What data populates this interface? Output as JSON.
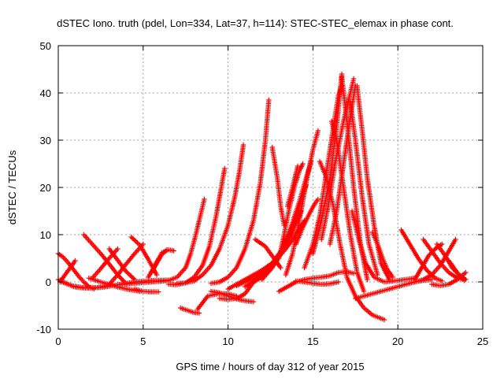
{
  "chart_data": {
    "type": "scatter",
    "title": "dSTEC Iono. truth (pdel, Lon=334, Lat=37, h=114): STEC-STEC_elemax in phase cont.",
    "xlabel": "GPS time / hours of day 312 of year 2015",
    "ylabel": "dSTEC  / TECUs",
    "xlim": [
      0,
      25
    ],
    "ylim": [
      -10,
      50
    ],
    "xticks": [
      0,
      5,
      10,
      15,
      20,
      25
    ],
    "yticks": [
      -10,
      0,
      10,
      20,
      30,
      40,
      50
    ],
    "grid": true,
    "marker": "plus",
    "color": "#ff0000",
    "series": [
      {
        "x": [
          0.0,
          0.3,
          0.6,
          0.9,
          1.2,
          1.6,
          2.0,
          2.4,
          2.8,
          3.2
        ],
        "y": [
          0.5,
          0.0,
          -0.5,
          -1.0,
          -1.2,
          -1.3,
          -1.3,
          -1.1,
          -0.8,
          -0.5
        ]
      },
      {
        "x": [
          0.0,
          0.3,
          0.6,
          0.9,
          1.2,
          1.5,
          1.8,
          2.1
        ],
        "y": [
          6.0,
          5.2,
          4.0,
          2.6,
          1.2,
          0.0,
          -1.0,
          -1.5
        ]
      },
      {
        "x": [
          0.1,
          0.4,
          0.7,
          1.0
        ],
        "y": [
          0.0,
          1.5,
          3.0,
          4.5
        ]
      },
      {
        "x": [
          0.2,
          0.8,
          1.5,
          2.5,
          3.5,
          4.5,
          5.5,
          6.5
        ],
        "y": [
          0.0,
          -0.8,
          -1.2,
          -1.2,
          -0.6,
          0.0,
          0.3,
          0.4
        ]
      },
      {
        "x": [
          1.5,
          2.0,
          2.5,
          3.0,
          3.5,
          3.9
        ],
        "y": [
          10.0,
          8.0,
          6.0,
          3.8,
          1.5,
          0.0
        ]
      },
      {
        "x": [
          2.0,
          2.5,
          3.0,
          3.5
        ],
        "y": [
          0.8,
          2.8,
          5.0,
          7.0
        ]
      },
      {
        "x": [
          1.8,
          2.5,
          3.2,
          4.0,
          4.8
        ],
        "y": [
          0.8,
          0.0,
          -0.8,
          -1.5,
          -2.0
        ]
      },
      {
        "x": [
          3.0,
          3.5,
          4.0,
          4.5
        ],
        "y": [
          7.0,
          4.6,
          2.2,
          0.5
        ]
      },
      {
        "x": [
          3.0,
          3.5,
          4.0,
          4.5,
          5.0
        ],
        "y": [
          -0.5,
          1.5,
          3.8,
          6.0,
          8.0
        ]
      },
      {
        "x": [
          4.3,
          4.8,
          5.3,
          5.8
        ],
        "y": [
          9.5,
          7.8,
          4.8,
          1.5
        ]
      },
      {
        "x": [
          4.5,
          5.0,
          5.5,
          5.9
        ],
        "y": [
          -1.5,
          -2.0,
          -2.1,
          -2.1
        ]
      },
      {
        "x": [
          5.5,
          5.8,
          6.1,
          6.4
        ],
        "y": [
          2.0,
          4.0,
          5.8,
          6.8
        ]
      },
      {
        "x": [
          5.3,
          5.7,
          6.1,
          6.5,
          6.8
        ],
        "y": [
          1.0,
          3.5,
          6.2,
          6.8,
          6.6
        ]
      },
      {
        "x": [
          3.5,
          4.5,
          5.5,
          6.0,
          6.5,
          7.0,
          7.5,
          7.8,
          8.1,
          8.4,
          8.6
        ],
        "y": [
          -0.6,
          -0.3,
          0.0,
          0.1,
          0.3,
          1.0,
          3.0,
          6.0,
          10.0,
          14.5,
          17.5
        ]
      },
      {
        "x": [
          6.5,
          7.0,
          7.5,
          8.0,
          8.5,
          8.9,
          9.3,
          9.6,
          9.8
        ],
        "y": [
          -0.5,
          -0.6,
          -0.2,
          1.0,
          3.5,
          7.5,
          14.0,
          20.0,
          24.0
        ]
      },
      {
        "x": [
          7.0,
          7.5,
          8.0,
          8.5,
          9.0,
          9.5,
          10.0,
          10.4,
          10.7,
          10.9
        ],
        "y": [
          -0.3,
          -0.2,
          0.2,
          1.5,
          3.5,
          7.0,
          12.0,
          18.0,
          24.0,
          29.0
        ]
      },
      {
        "x": [
          7.2,
          7.6,
          8.0,
          8.3
        ],
        "y": [
          -5.5,
          -6.0,
          -6.5,
          -6.6
        ]
      },
      {
        "x": [
          8.2,
          8.8,
          9.4,
          10.0,
          10.5
        ],
        "y": [
          -5.8,
          -3.0,
          -2.5,
          -2.5,
          -3.0
        ]
      },
      {
        "x": [
          9.0,
          9.5,
          10.0,
          10.5,
          11.0,
          11.5
        ],
        "y": [
          -2.0,
          -2.3,
          -3.0,
          -3.6,
          -4.0,
          -4.2
        ]
      },
      {
        "x": [
          9.5,
          10.0,
          10.5,
          11.0,
          11.5,
          12.0,
          12.5
        ],
        "y": [
          -3.5,
          -3.7,
          -3.5,
          -2.5,
          0.0,
          2.0,
          3.5
        ]
      },
      {
        "x": [
          9.0,
          9.5,
          10.0,
          10.5,
          11.0,
          11.5,
          11.9,
          12.2,
          12.4
        ],
        "y": [
          -0.3,
          0.0,
          1.0,
          3.0,
          7.0,
          13.0,
          21.0,
          30.0,
          38.5
        ]
      },
      {
        "x": [
          10.0,
          11.0,
          12.0,
          12.8,
          13.4,
          14.0,
          14.5
        ],
        "y": [
          -1.5,
          0.5,
          2.5,
          4.5,
          7.0,
          10.0,
          13.0
        ]
      },
      {
        "x": [
          10.5,
          11.5,
          12.5,
          13.2,
          13.8,
          14.3
        ],
        "y": [
          -0.8,
          0.8,
          3.5,
          7.0,
          10.5,
          15.0
        ]
      },
      {
        "x": [
          11.0,
          12.0,
          12.8,
          13.5,
          14.1
        ],
        "y": [
          -1.0,
          1.0,
          4.0,
          9.0,
          14.0
        ]
      },
      {
        "x": [
          11.5,
          12.3,
          13.0,
          13.6,
          14.2,
          14.6
        ],
        "y": [
          0.0,
          2.0,
          5.5,
          10.0,
          16.0,
          20.5
        ]
      },
      {
        "x": [
          12.0,
          12.6,
          13.2,
          13.7,
          14.2,
          14.6,
          14.9
        ],
        "y": [
          0.5,
          3.0,
          7.0,
          11.5,
          17.0,
          22.0,
          25.5
        ]
      },
      {
        "x": [
          11.6,
          12.2,
          12.7,
          13.1
        ],
        "y": [
          9.0,
          7.5,
          5.0,
          3.0
        ]
      },
      {
        "x": [
          12.6,
          12.9,
          13.1,
          13.3
        ],
        "y": [
          28.5,
          22.0,
          16.0,
          12.0
        ]
      },
      {
        "x": [
          13.0,
          13.3,
          13.6,
          13.9,
          14.2,
          14.4
        ],
        "y": [
          5.0,
          10.0,
          15.5,
          20.0,
          23.5,
          25.0
        ]
      },
      {
        "x": [
          13.4,
          13.8,
          14.2,
          14.6,
          15.0,
          15.3
        ],
        "y": [
          1.5,
          6.0,
          13.0,
          21.0,
          28.0,
          32.0
        ]
      },
      {
        "x": [
          13.5,
          13.8,
          14.1
        ],
        "y": [
          16.0,
          20.0,
          24.5
        ]
      },
      {
        "x": [
          14.0,
          14.4,
          14.8,
          15.1,
          15.3
        ],
        "y": [
          8.0,
          11.5,
          14.5,
          16.5,
          17.5
        ]
      },
      {
        "x": [
          13.0,
          13.5,
          14.0,
          14.5,
          15.0,
          15.5,
          16.0,
          16.5,
          17.0,
          17.4
        ],
        "y": [
          -2.0,
          -1.0,
          0.0,
          0.5,
          0.8,
          1.0,
          1.3,
          2.0,
          2.2,
          1.8
        ]
      },
      {
        "x": [
          14.0,
          14.5,
          15.0,
          15.5,
          16.0,
          16.5
        ],
        "y": [
          0.2,
          0.0,
          -0.3,
          -0.5,
          -0.4,
          0.0
        ]
      },
      {
        "x": [
          14.5,
          15.0,
          15.4,
          15.7,
          16.0,
          16.3,
          16.5,
          16.7
        ],
        "y": [
          3.0,
          8.0,
          14.0,
          21.0,
          28.0,
          35.0,
          39.5,
          41.5
        ]
      },
      {
        "x": [
          15.0,
          15.5,
          16.0,
          16.4,
          16.7
        ],
        "y": [
          6.0,
          13.0,
          22.0,
          33.0,
          44.0
        ]
      },
      {
        "x": [
          15.5,
          15.9,
          16.3,
          16.8,
          17.2,
          17.4
        ],
        "y": [
          9.0,
          16.0,
          25.0,
          34.0,
          40.0,
          43.0
        ]
      },
      {
        "x": [
          16.0,
          16.4,
          16.8,
          17.2,
          17.5
        ],
        "y": [
          8.0,
          15.0,
          25.0,
          35.0,
          41.5
        ]
      },
      {
        "x": [
          15.4,
          15.8,
          16.2,
          16.6,
          17.0,
          17.5,
          18.0,
          18.5,
          19.2
        ],
        "y": [
          25.5,
          22.0,
          16.0,
          8.0,
          1.0,
          -3.0,
          -5.5,
          -7.0,
          -8.0
        ]
      },
      {
        "x": [
          16.1,
          16.4,
          16.8,
          17.2,
          17.6,
          18.0
        ],
        "y": [
          34.0,
          30.0,
          20.0,
          10.0,
          2.0,
          -2.0
        ]
      },
      {
        "x": [
          16.7,
          17.0,
          17.4,
          17.8,
          18.2
        ],
        "y": [
          43.5,
          34.0,
          20.0,
          8.0,
          0.5
        ]
      },
      {
        "x": [
          17.2,
          17.5,
          17.9,
          18.3,
          18.8
        ],
        "y": [
          38.0,
          30.0,
          18.0,
          8.0,
          1.5
        ]
      },
      {
        "x": [
          17.6,
          17.9,
          18.2,
          18.6,
          19.0,
          19.5
        ],
        "y": [
          41.5,
          32.0,
          22.0,
          12.0,
          4.0,
          0.5
        ]
      },
      {
        "x": [
          17.3,
          17.7,
          18.1,
          18.6,
          19.2,
          20.0,
          21.0
        ],
        "y": [
          15.0,
          9.0,
          4.0,
          1.0,
          0.0,
          0.3,
          0.8
        ]
      },
      {
        "x": [
          17.5,
          18.0,
          18.5,
          19.0,
          19.5,
          20.0,
          20.5,
          21.0,
          21.5,
          22.0
        ],
        "y": [
          -3.5,
          -3.0,
          -2.5,
          -2.0,
          -1.5,
          -1.0,
          -0.5,
          0.0,
          0.3,
          0.5
        ]
      },
      {
        "x": [
          18.5,
          18.8,
          19.1,
          19.4,
          19.7
        ],
        "y": [
          10.5,
          8.0,
          5.0,
          2.5,
          1.0
        ]
      },
      {
        "x": [
          20.2,
          20.7,
          21.2,
          21.7,
          22.2,
          22.6
        ],
        "y": [
          11.0,
          8.0,
          5.0,
          2.5,
          0.8,
          0.2
        ]
      },
      {
        "x": [
          21.0,
          21.4,
          21.8,
          22.2,
          22.6
        ],
        "y": [
          0.5,
          3.0,
          5.5,
          7.0,
          8.0
        ]
      },
      {
        "x": [
          21.5,
          22.0,
          22.5,
          23.0,
          23.5,
          23.9
        ],
        "y": [
          9.0,
          6.5,
          4.0,
          2.0,
          0.8,
          0.5
        ]
      },
      {
        "x": [
          21.0,
          21.5,
          22.0,
          22.5,
          23.0,
          23.4
        ],
        "y": [
          0.0,
          0.5,
          1.5,
          3.5,
          6.5,
          9.0
        ]
      },
      {
        "x": [
          22.0,
          22.5,
          23.0,
          23.5,
          24.0
        ],
        "y": [
          -0.5,
          -0.8,
          -0.5,
          0.5,
          2.0
        ]
      },
      {
        "x": [
          22.3,
          22.8,
          23.2,
          23.6,
          24.0
        ],
        "y": [
          8.0,
          5.5,
          3.0,
          1.5,
          0.5
        ]
      },
      {
        "x": [
          23.0,
          23.3,
          23.6,
          23.9
        ],
        "y": [
          4.5,
          3.0,
          1.5,
          0.3
        ]
      }
    ]
  }
}
